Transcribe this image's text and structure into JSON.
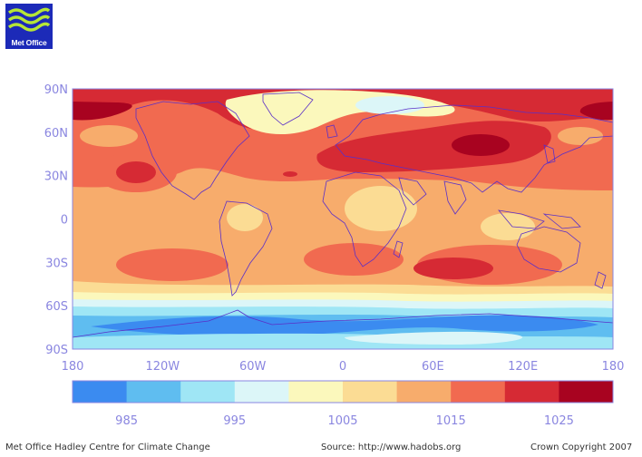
{
  "logo": {
    "text": "Met Office",
    "wave_color": "#b6e636",
    "bg_color": "#1c2ab8"
  },
  "map": {
    "lat_labels": [
      "90N",
      "60N",
      "30N",
      "0",
      "30S",
      "60S",
      "90S"
    ],
    "lat_values": [
      90,
      60,
      30,
      0,
      -30,
      -60,
      -90
    ],
    "lon_labels": [
      "180",
      "120W",
      "60W",
      "0",
      "60E",
      "120E",
      "180"
    ],
    "lon_values": [
      -180,
      -120,
      -60,
      0,
      60,
      120,
      180
    ],
    "coastline_color": "#5a2fc8"
  },
  "colorbar": {
    "colors": [
      "#3b8bf0",
      "#5fbdf0",
      "#9fe6f5",
      "#dcf6f8",
      "#fbf8bc",
      "#fbdc94",
      "#f7ac6c",
      "#f16a50",
      "#d62a34",
      "#a80320"
    ],
    "labels": [
      "985",
      "995",
      "1005",
      "1015",
      "1025"
    ],
    "label_boundary_index": [
      1,
      3,
      5,
      7,
      9
    ]
  },
  "footer": {
    "left": "Met Office Hadley Centre for Climate Change",
    "center": "Source: http://www.hadobs.org",
    "right": "Crown Copyright 2007"
  }
}
